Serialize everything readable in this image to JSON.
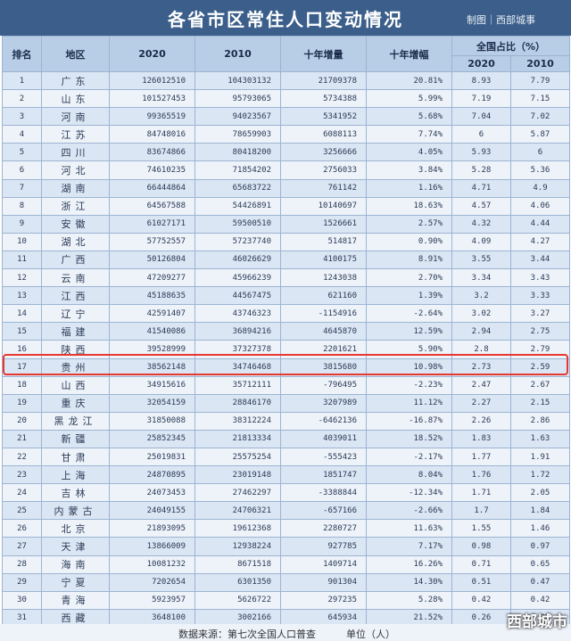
{
  "title": "各省市区常住人口变动情况",
  "credit": "制图｜西部城事",
  "headers": {
    "rank": "排名",
    "region": "地区",
    "y2020": "2020",
    "y2010": "2010",
    "increase": "十年增量",
    "rate": "十年增幅",
    "share": "全国占比（%）",
    "share2020": "2020",
    "share2010": "2010"
  },
  "rows": [
    {
      "rank": "1",
      "region": "广东",
      "p2020": "126012510",
      "p2010": "104303132",
      "inc": "21709378",
      "rate": "20.81%",
      "s2020": "8.93",
      "s2010": "7.79"
    },
    {
      "rank": "2",
      "region": "山东",
      "p2020": "101527453",
      "p2010": "95793065",
      "inc": "5734388",
      "rate": "5.99%",
      "s2020": "7.19",
      "s2010": "7.15"
    },
    {
      "rank": "3",
      "region": "河南",
      "p2020": "99365519",
      "p2010": "94023567",
      "inc": "5341952",
      "rate": "5.68%",
      "s2020": "7.04",
      "s2010": "7.02"
    },
    {
      "rank": "4",
      "region": "江苏",
      "p2020": "84748016",
      "p2010": "78659903",
      "inc": "6088113",
      "rate": "7.74%",
      "s2020": "6",
      "s2010": "5.87"
    },
    {
      "rank": "5",
      "region": "四川",
      "p2020": "83674866",
      "p2010": "80418200",
      "inc": "3256666",
      "rate": "4.05%",
      "s2020": "5.93",
      "s2010": "6"
    },
    {
      "rank": "6",
      "region": "河北",
      "p2020": "74610235",
      "p2010": "71854202",
      "inc": "2756033",
      "rate": "3.84%",
      "s2020": "5.28",
      "s2010": "5.36"
    },
    {
      "rank": "7",
      "region": "湖南",
      "p2020": "66444864",
      "p2010": "65683722",
      "inc": "761142",
      "rate": "1.16%",
      "s2020": "4.71",
      "s2010": "4.9"
    },
    {
      "rank": "8",
      "region": "浙江",
      "p2020": "64567588",
      "p2010": "54426891",
      "inc": "10140697",
      "rate": "18.63%",
      "s2020": "4.57",
      "s2010": "4.06"
    },
    {
      "rank": "9",
      "region": "安徽",
      "p2020": "61027171",
      "p2010": "59500510",
      "inc": "1526661",
      "rate": "2.57%",
      "s2020": "4.32",
      "s2010": "4.44"
    },
    {
      "rank": "10",
      "region": "湖北",
      "p2020": "57752557",
      "p2010": "57237740",
      "inc": "514817",
      "rate": "0.90%",
      "s2020": "4.09",
      "s2010": "4.27"
    },
    {
      "rank": "11",
      "region": "广西",
      "p2020": "50126804",
      "p2010": "46026629",
      "inc": "4100175",
      "rate": "8.91%",
      "s2020": "3.55",
      "s2010": "3.44"
    },
    {
      "rank": "12",
      "region": "云南",
      "p2020": "47209277",
      "p2010": "45966239",
      "inc": "1243038",
      "rate": "2.70%",
      "s2020": "3.34",
      "s2010": "3.43"
    },
    {
      "rank": "13",
      "region": "江西",
      "p2020": "45188635",
      "p2010": "44567475",
      "inc": "621160",
      "rate": "1.39%",
      "s2020": "3.2",
      "s2010": "3.33"
    },
    {
      "rank": "14",
      "region": "辽宁",
      "p2020": "42591407",
      "p2010": "43746323",
      "inc": "-1154916",
      "rate": "-2.64%",
      "s2020": "3.02",
      "s2010": "3.27"
    },
    {
      "rank": "15",
      "region": "福建",
      "p2020": "41540086",
      "p2010": "36894216",
      "inc": "4645870",
      "rate": "12.59%",
      "s2020": "2.94",
      "s2010": "2.75"
    },
    {
      "rank": "16",
      "region": "陕西",
      "p2020": "39528999",
      "p2010": "37327378",
      "inc": "2201621",
      "rate": "5.90%",
      "s2020": "2.8",
      "s2010": "2.79"
    },
    {
      "rank": "17",
      "region": "贵州",
      "p2020": "38562148",
      "p2010": "34746468",
      "inc": "3815680",
      "rate": "10.98%",
      "s2020": "2.73",
      "s2010": "2.59"
    },
    {
      "rank": "18",
      "region": "山西",
      "p2020": "34915616",
      "p2010": "35712111",
      "inc": "-796495",
      "rate": "-2.23%",
      "s2020": "2.47",
      "s2010": "2.67"
    },
    {
      "rank": "19",
      "region": "重庆",
      "p2020": "32054159",
      "p2010": "28846170",
      "inc": "3207989",
      "rate": "11.12%",
      "s2020": "2.27",
      "s2010": "2.15"
    },
    {
      "rank": "20",
      "region": "黑龙江",
      "p2020": "31850088",
      "p2010": "38312224",
      "inc": "-6462136",
      "rate": "-16.87%",
      "s2020": "2.26",
      "s2010": "2.86"
    },
    {
      "rank": "21",
      "region": "新疆",
      "p2020": "25852345",
      "p2010": "21813334",
      "inc": "4039011",
      "rate": "18.52%",
      "s2020": "1.83",
      "s2010": "1.63"
    },
    {
      "rank": "22",
      "region": "甘肃",
      "p2020": "25019831",
      "p2010": "25575254",
      "inc": "-555423",
      "rate": "-2.17%",
      "s2020": "1.77",
      "s2010": "1.91"
    },
    {
      "rank": "23",
      "region": "上海",
      "p2020": "24870895",
      "p2010": "23019148",
      "inc": "1851747",
      "rate": "8.04%",
      "s2020": "1.76",
      "s2010": "1.72"
    },
    {
      "rank": "24",
      "region": "吉林",
      "p2020": "24073453",
      "p2010": "27462297",
      "inc": "-3388844",
      "rate": "-12.34%",
      "s2020": "1.71",
      "s2010": "2.05"
    },
    {
      "rank": "25",
      "region": "内蒙古",
      "p2020": "24049155",
      "p2010": "24706321",
      "inc": "-657166",
      "rate": "-2.66%",
      "s2020": "1.7",
      "s2010": "1.84"
    },
    {
      "rank": "26",
      "region": "北京",
      "p2020": "21893095",
      "p2010": "19612368",
      "inc": "2280727",
      "rate": "11.63%",
      "s2020": "1.55",
      "s2010": "1.46"
    },
    {
      "rank": "27",
      "region": "天津",
      "p2020": "13866009",
      "p2010": "12938224",
      "inc": "927785",
      "rate": "7.17%",
      "s2020": "0.98",
      "s2010": "0.97"
    },
    {
      "rank": "28",
      "region": "海南",
      "p2020": "10081232",
      "p2010": "8671518",
      "inc": "1409714",
      "rate": "16.26%",
      "s2020": "0.71",
      "s2010": "0.65"
    },
    {
      "rank": "29",
      "region": "宁夏",
      "p2020": "7202654",
      "p2010": "6301350",
      "inc": "901304",
      "rate": "14.30%",
      "s2020": "0.51",
      "s2010": "0.47"
    },
    {
      "rank": "30",
      "region": "青海",
      "p2020": "5923957",
      "p2010": "5626722",
      "inc": "297235",
      "rate": "5.28%",
      "s2020": "0.42",
      "s2010": "0.42"
    },
    {
      "rank": "31",
      "region": "西藏",
      "p2020": "3648100",
      "p2010": "3002166",
      "inc": "645934",
      "rate": "21.52%",
      "s2020": "0.26",
      "s2010": "0.22"
    }
  ],
  "footer": {
    "source": "数据来源：第七次全国人口普查",
    "unit": "单位（人）"
  },
  "watermark": "西部城市",
  "colors": {
    "title_bg": "#3b5f8a",
    "header_bg": "#b8cde6",
    "row_odd": "#dbe6f4",
    "row_even": "#eef3fa",
    "highlight": "#e8372e"
  }
}
